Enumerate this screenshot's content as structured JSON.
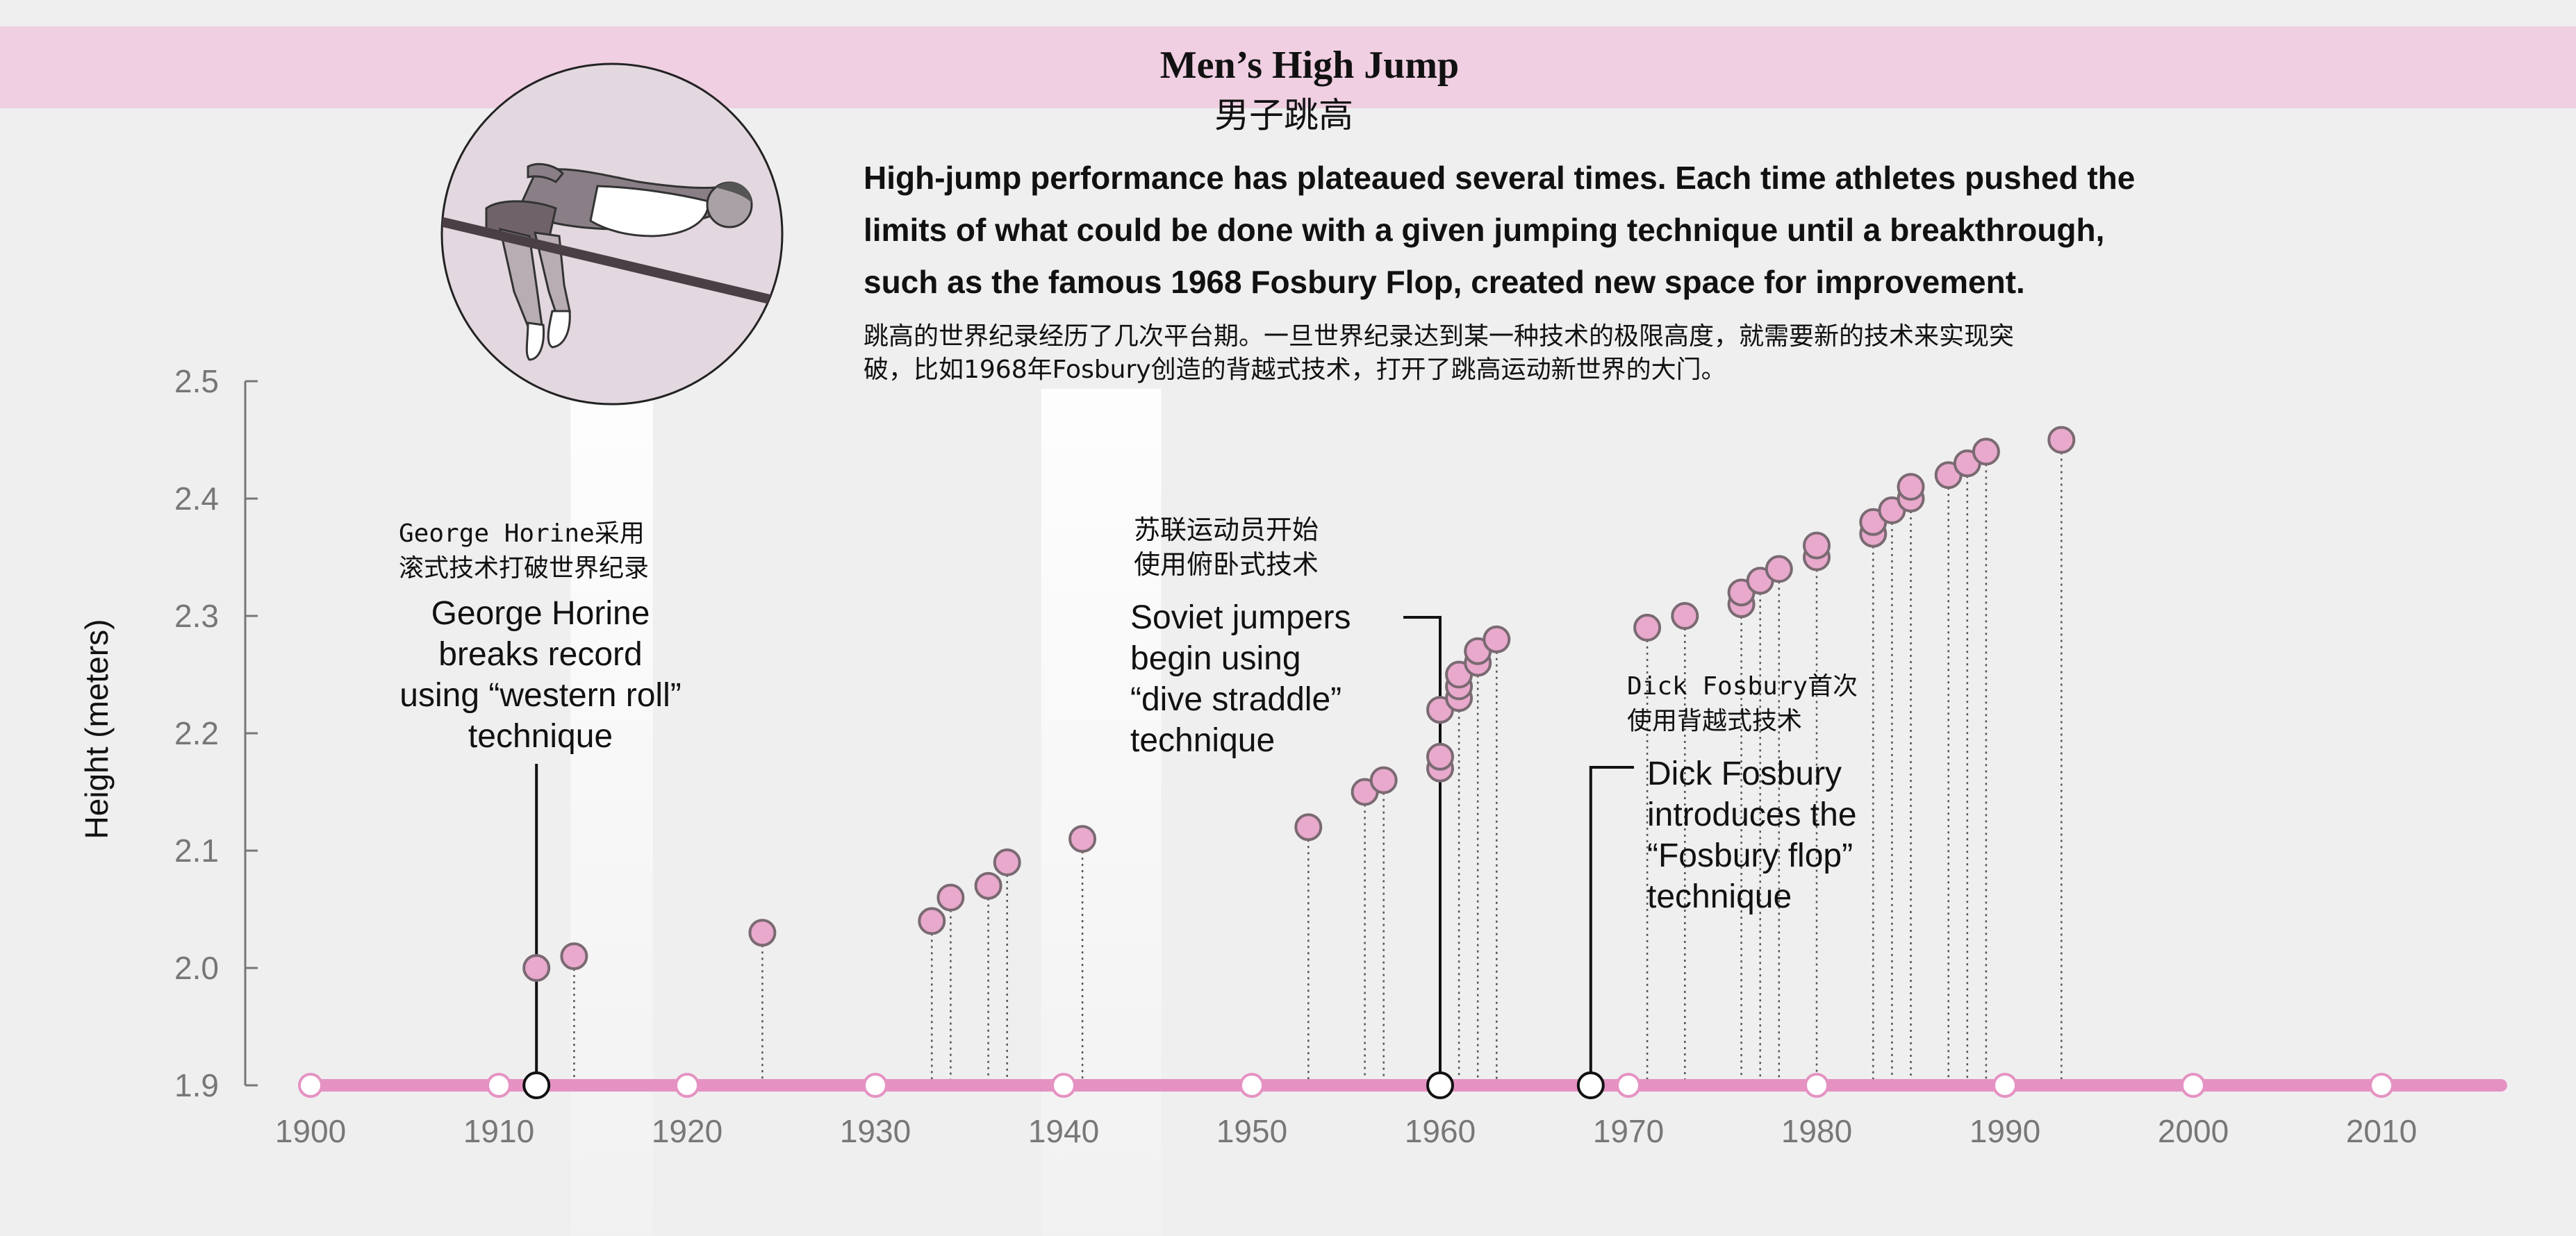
{
  "header": {
    "title": "Men’s High Jump",
    "title_zh": "男子跳高"
  },
  "intro": {
    "en_lines": [
      "High-jump performance has plateaued several times. Each time athletes pushed the",
      "limits of what could be done with a given jumping technique until a breakthrough,",
      "such as the famous 1968 Fosbury Flop, created new space for improvement."
    ],
    "zh_lines": [
      "跳高的世界纪录经历了几次平台期。一旦世界纪录达到某一种技术的极限高度，就需要新的技术来实现突",
      "破，比如1968年Fosbury创造的背越式技术，打开了跳高运动新世界的大门。"
    ]
  },
  "colors": {
    "background": "#efefef",
    "header_band": "#efcfe1",
    "timeline": "#e592c3",
    "point_fill": "#e8a9cc",
    "point_stroke": "#7a6a72",
    "axis": "#777777",
    "text": "#111111"
  },
  "icons": {
    "illustration": "high-jumper-illustration"
  },
  "chart_data": {
    "type": "scatter",
    "title": "",
    "xlabel": "",
    "ylabel": "Height (meters)",
    "xlim": [
      1900,
      2016
    ],
    "ylim": [
      1.9,
      2.5
    ],
    "x_ticks": [
      "1900",
      "1910",
      "1920",
      "1930",
      "1940",
      "1950",
      "1960",
      "1970",
      "1980",
      "1990",
      "2000",
      "2010"
    ],
    "y_ticks": [
      "1.9",
      "2.0",
      "2.1",
      "2.2",
      "2.3",
      "2.4",
      "2.5"
    ],
    "grid": false,
    "points": [
      {
        "x": 1912,
        "y": 2.0
      },
      {
        "x": 1914,
        "y": 2.01
      },
      {
        "x": 1924,
        "y": 2.03
      },
      {
        "x": 1933,
        "y": 2.04
      },
      {
        "x": 1934,
        "y": 2.06
      },
      {
        "x": 1936,
        "y": 2.07
      },
      {
        "x": 1937,
        "y": 2.09
      },
      {
        "x": 1941,
        "y": 2.11
      },
      {
        "x": 1953,
        "y": 2.12
      },
      {
        "x": 1956,
        "y": 2.15
      },
      {
        "x": 1957,
        "y": 2.16
      },
      {
        "x": 1960,
        "y": 2.17
      },
      {
        "x": 1960,
        "y": 2.18
      },
      {
        "x": 1960,
        "y": 2.22
      },
      {
        "x": 1961,
        "y": 2.23
      },
      {
        "x": 1961,
        "y": 2.24
      },
      {
        "x": 1961,
        "y": 2.25
      },
      {
        "x": 1962,
        "y": 2.26
      },
      {
        "x": 1962,
        "y": 2.27
      },
      {
        "x": 1963,
        "y": 2.28
      },
      {
        "x": 1971,
        "y": 2.29
      },
      {
        "x": 1973,
        "y": 2.3
      },
      {
        "x": 1976,
        "y": 2.31
      },
      {
        "x": 1976,
        "y": 2.32
      },
      {
        "x": 1977,
        "y": 2.33
      },
      {
        "x": 1978,
        "y": 2.34
      },
      {
        "x": 1980,
        "y": 2.35
      },
      {
        "x": 1980,
        "y": 2.36
      },
      {
        "x": 1983,
        "y": 2.37
      },
      {
        "x": 1983,
        "y": 2.38
      },
      {
        "x": 1984,
        "y": 2.39
      },
      {
        "x": 1985,
        "y": 2.4
      },
      {
        "x": 1985,
        "y": 2.41
      },
      {
        "x": 1987,
        "y": 2.42
      },
      {
        "x": 1988,
        "y": 2.43
      },
      {
        "x": 1989,
        "y": 2.44
      },
      {
        "x": 1993,
        "y": 2.45
      }
    ],
    "timeline_markers": [
      1900,
      1910,
      1920,
      1930,
      1940,
      1950,
      1970,
      1980,
      1990,
      2000,
      2010
    ],
    "events": [
      {
        "year": 1912,
        "zh": [
          "George Horine采用",
          "滚式技术打破世界纪录"
        ],
        "en": [
          "George Horine",
          "breaks record",
          "using “western roll”",
          "technique"
        ]
      },
      {
        "year": 1960,
        "zh": [
          "苏联运动员开始",
          "使用俯卧式技术"
        ],
        "en": [
          "Soviet jumpers",
          "begin using",
          "“dive straddle”",
          "technique"
        ]
      },
      {
        "year": 1968,
        "zh": [
          "Dick Fosbury首次",
          "使用背越式技术"
        ],
        "en": [
          "Dick Fosbury",
          "introduces the",
          "“Fosbury flop”",
          "technique"
        ]
      }
    ],
    "highlight_bands": [
      [
        1914,
        1918
      ],
      [
        1939,
        1945
      ]
    ]
  }
}
